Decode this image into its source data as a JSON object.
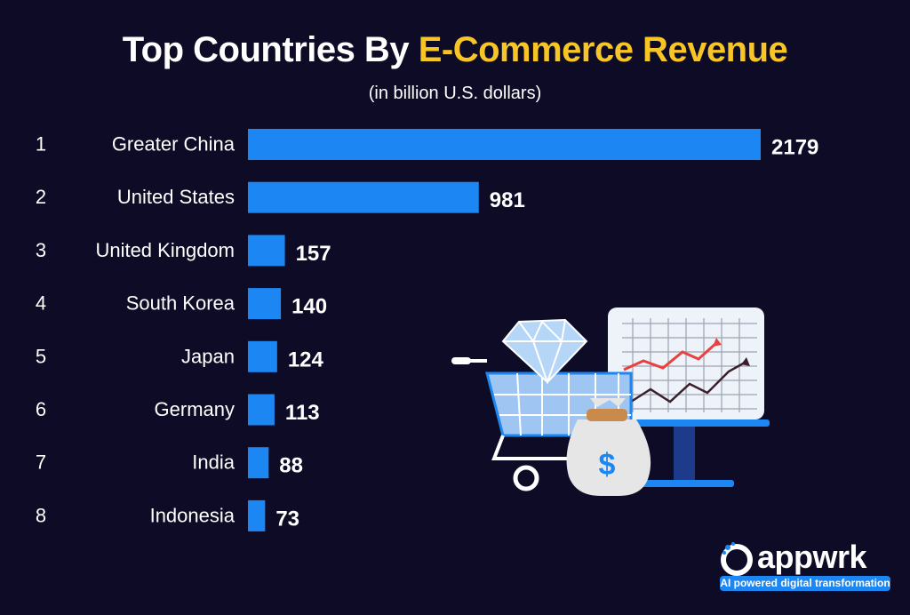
{
  "header": {
    "title_main": "Top Countries By",
    "title_accent": "E-Commerce Revenue",
    "subtitle": "(in billion U.S. dollars)"
  },
  "colors": {
    "background": "#0e0b26",
    "bar": "#1c86f2",
    "accent": "#f7c525",
    "text": "#ffffff"
  },
  "chart_data": {
    "type": "bar",
    "orientation": "horizontal",
    "ranks": [
      "1",
      "2",
      "3",
      "4",
      "5",
      "6",
      "7",
      "8"
    ],
    "categories": [
      "Greater China",
      "United States",
      "United Kingdom",
      "South Korea",
      "Japan",
      "Germany",
      "India",
      "Indonesia"
    ],
    "values": [
      2179,
      981,
      157,
      140,
      124,
      113,
      88,
      73
    ],
    "data_labels": [
      "2179",
      "981",
      "157",
      "140",
      "124",
      "113",
      "88",
      "73"
    ],
    "title": "Top Countries By E-Commerce Revenue",
    "subtitle": "(in billion U.S. dollars)",
    "grid": false,
    "legend": "none"
  },
  "brand": {
    "name": "appwrk",
    "tagline": "AI powered digital transformation"
  },
  "illustration": {
    "icons": [
      "shopping-cart-icon",
      "diamond-icon",
      "money-bag-icon",
      "line-chart-board-icon"
    ],
    "money_symbol": "$"
  }
}
